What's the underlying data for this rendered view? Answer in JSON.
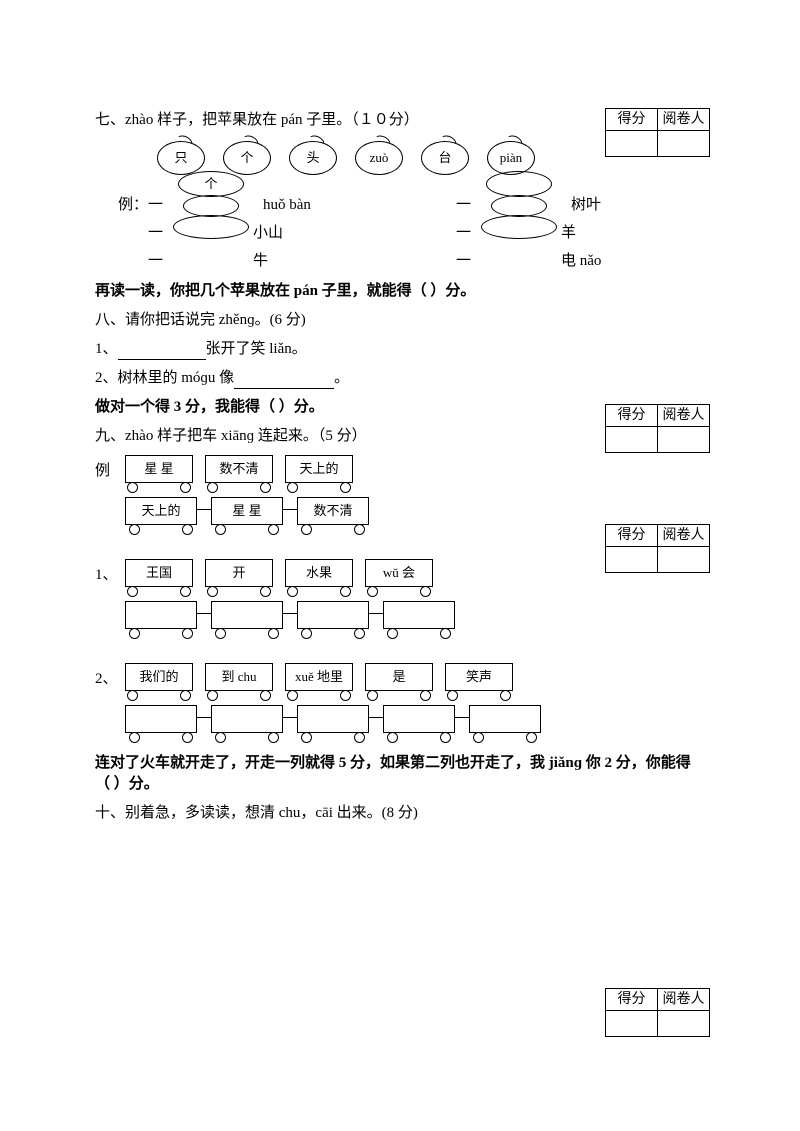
{
  "section7": {
    "title": "七、zhào 样子，把苹果放在 pán 子里。（１０分）",
    "apples": [
      "只",
      "个",
      "头",
      "zuò",
      "台",
      "piàn"
    ],
    "example_prefix": "例：一",
    "yi": "一",
    "huo_ban": "huǒ bàn",
    "ge": "个",
    "right_words": [
      "树叶",
      "羊",
      "电 nǎo"
    ],
    "left_words": [
      "小山",
      "牛"
    ],
    "footer": "再读一读，你把几个苹果放在 pán 子里，就能得（    ）分。",
    "score_header1": "得分",
    "score_header2": "阅卷人"
  },
  "section8": {
    "title": "八、请你把话说完 zhěnɡ。(6 分)",
    "q1_prefix": "1、",
    "q1_suffix": "张开了笑 liǎn。",
    "q2_prefix": "2、树林里的 móɡu 像",
    "q2_suffix": "。",
    "footer": "做对一个得 3 分，我能得（    ）分。",
    "score_header1": "得分",
    "score_header2": "阅卷人"
  },
  "section9": {
    "title": "九、zhào 样子把车 xiānɡ 连起来。（5 分）",
    "example_label": "例",
    "ex_top": [
      "星  星",
      "数不清",
      "天上的"
    ],
    "ex_bot": [
      "天上的",
      "星  星",
      "数不清"
    ],
    "q1_label": "1、",
    "q1_top": [
      "王国",
      "开",
      "水果",
      "wǔ 会"
    ],
    "q1_bot_count": 4,
    "q2_label": "2、",
    "q2_top": [
      "我们的",
      "到 chu",
      "xuě 地里",
      "是",
      "笑声"
    ],
    "q2_bot_count": 5,
    "footer": "连对了火车就开走了，开走一列就得 5 分，如果第二列也开走了，我 jiǎnɡ 你 2 分，你能得（    ）分。",
    "score_header1": "得分",
    "score_header2": "阅卷人"
  },
  "section10": {
    "title": "十、别着急，多读读，想清 chu，cāi 出来。(8 分)",
    "score_header1": "得分",
    "score_header2": "阅卷人"
  }
}
